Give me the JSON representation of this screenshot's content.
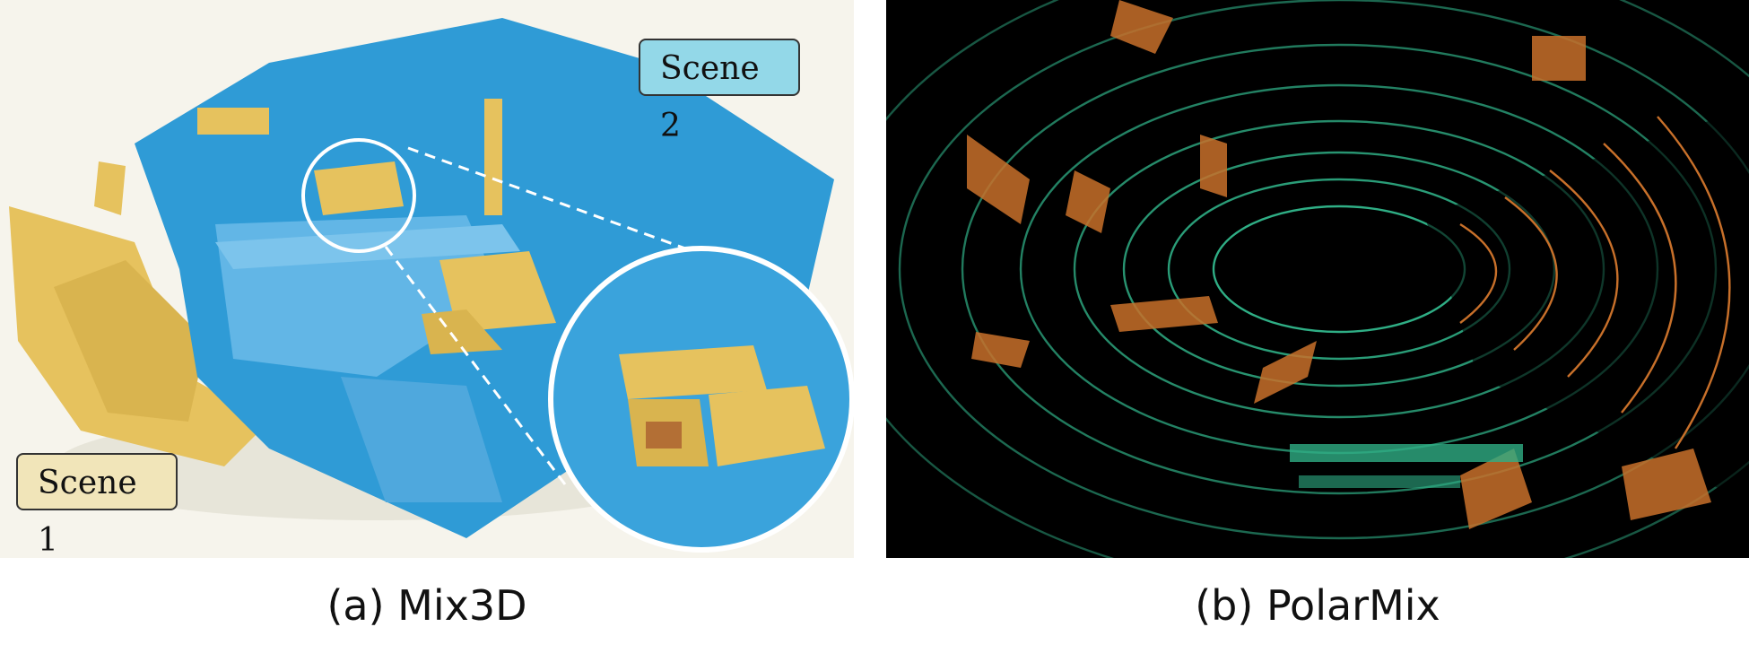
{
  "panel_a": {
    "caption": "(a) Mix3D",
    "scene1_label": "Scene 1",
    "scene2_label": "Scene 2",
    "colors": {
      "scene1": "#e8c35a",
      "scene2": "#2b9ad6",
      "background": "#f6f4ec"
    }
  },
  "panel_b": {
    "caption": "(b) PolarMix",
    "colors": {
      "scan_a": "#2fae85",
      "scan_b": "#c8702a",
      "background": "#000000"
    }
  }
}
